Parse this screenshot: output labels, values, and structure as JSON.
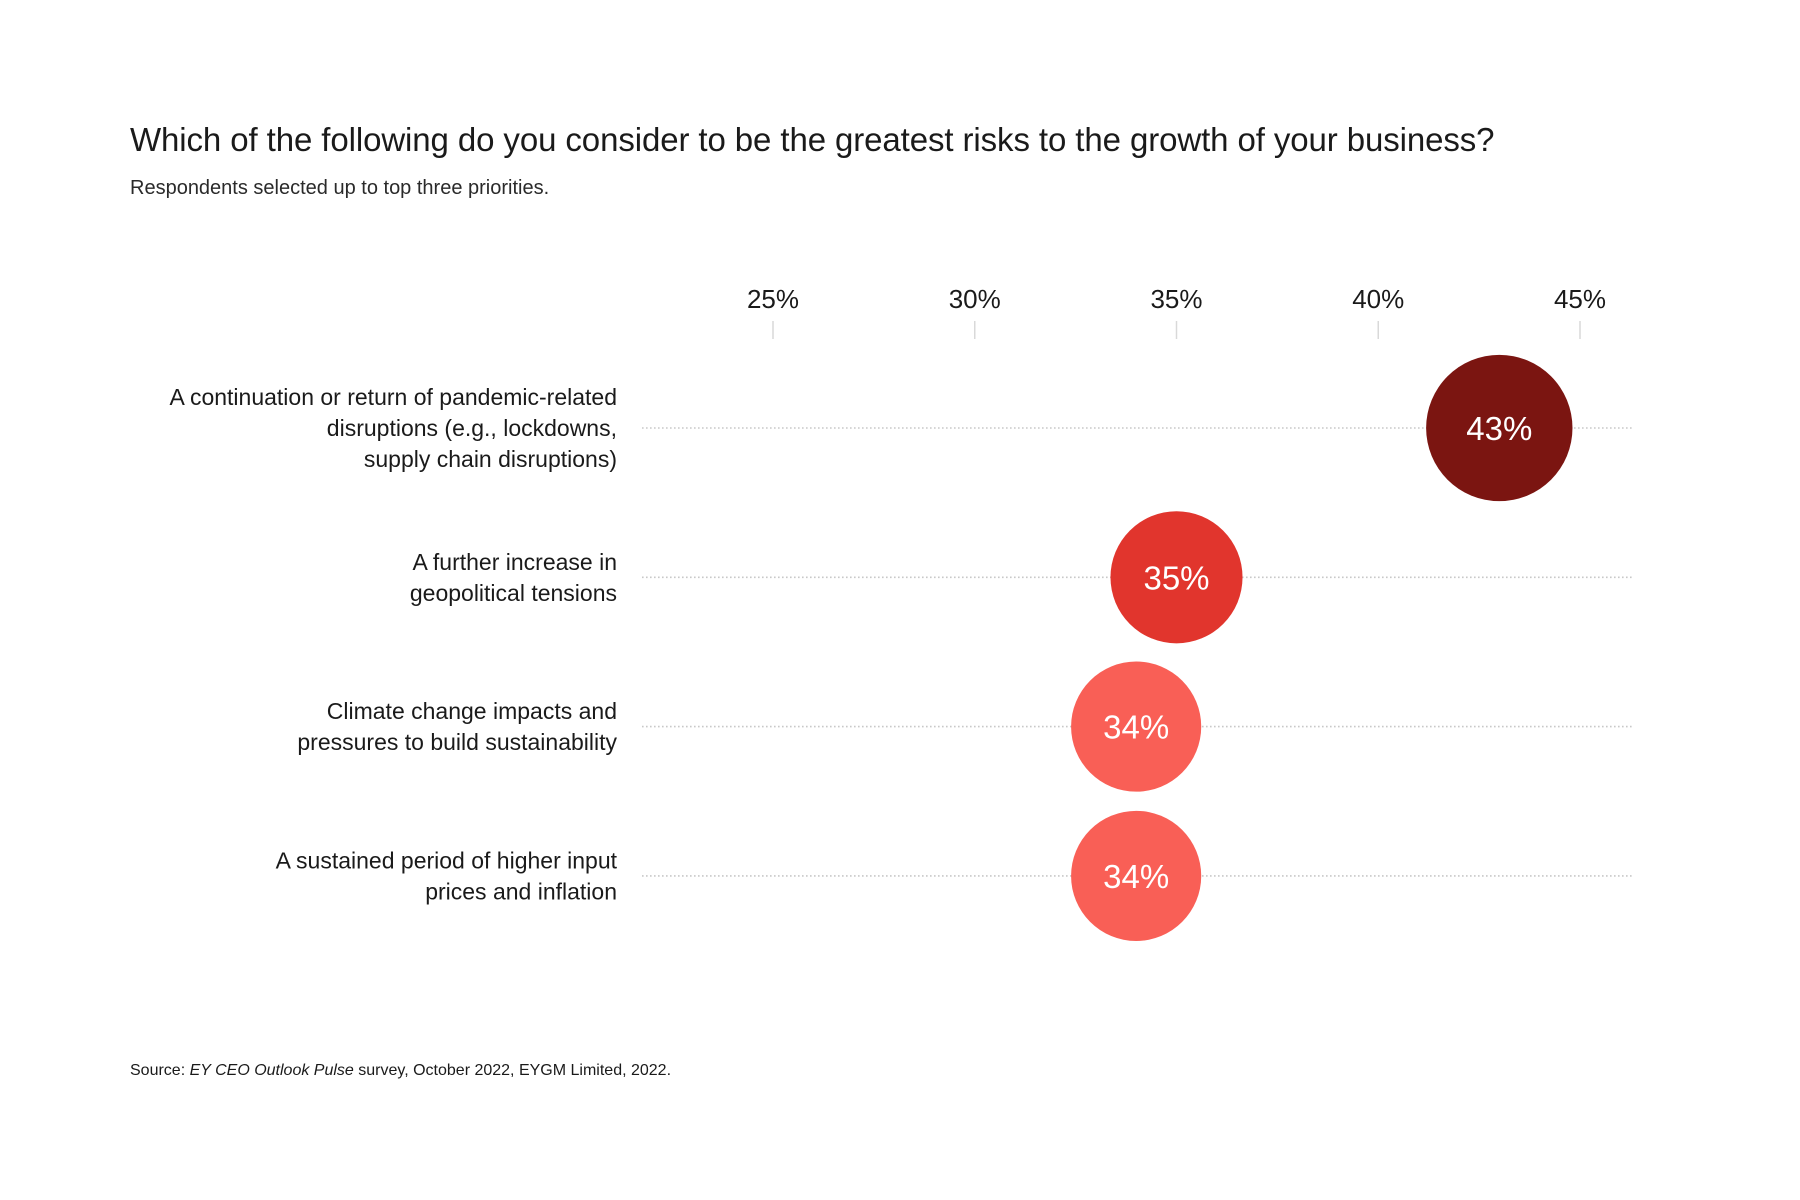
{
  "header": {
    "title": "Which of the following do you consider to be the greatest risks to the growth of your business?",
    "subtitle": "Respondents selected up to top three priorities."
  },
  "source": {
    "prefix": "Source: ",
    "italic": "EY CEO Outlook Pulse",
    "suffix": " survey, October 2022, EYGM Limited, 2022."
  },
  "chart_data": {
    "type": "scatter",
    "subtype": "bubble-dot-plot",
    "title": "Which of the following do you consider to be the greatest risks to the growth of your business?",
    "subtitle": "Respondents selected up to top three priorities.",
    "xlabel": "",
    "ylabel": "",
    "x_unit": "%",
    "xlim": [
      25,
      45
    ],
    "x_ticks": [
      25,
      30,
      35,
      40,
      45
    ],
    "x_tick_labels": [
      "25%",
      "30%",
      "35%",
      "40%",
      "45%"
    ],
    "x_axis_position": "top",
    "grid": "dotted horizontal guide per category",
    "legend": "none",
    "categories": [
      [
        "A continuation or return of pandemic-related",
        "disruptions (e.g., lockdowns,",
        "supply chain disruptions)"
      ],
      [
        "A further increase in",
        "geopolitical tensions"
      ],
      [
        "Climate change impacts and",
        "pressures to build sustainability"
      ],
      [
        "A sustained period of higher input",
        "prices and inflation"
      ]
    ],
    "values": [
      43,
      35,
      34,
      34
    ],
    "data_labels": [
      "43%",
      "35%",
      "34%",
      "34%"
    ],
    "colors": [
      "#7b1511",
      "#e1352d",
      "#f95f56",
      "#f95f56"
    ],
    "bubble_size_encodes": "value"
  },
  "colors": {
    "tick": "#d9d9d9",
    "guide": "#c8c8c8",
    "text": "#1a1a1a"
  }
}
